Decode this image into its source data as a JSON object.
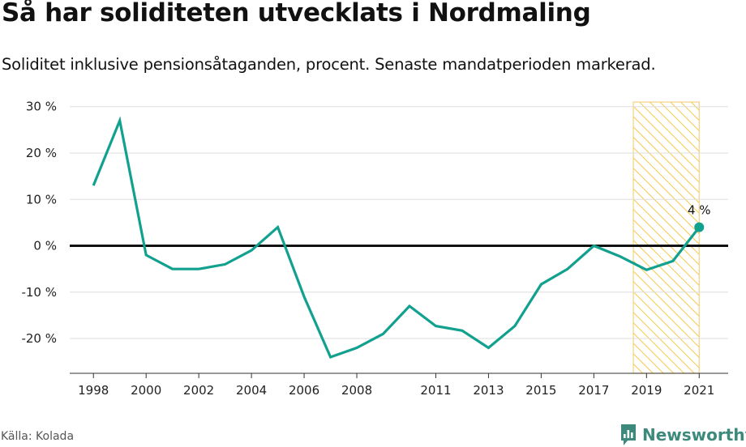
{
  "header": {
    "title": "Så har soliditeten utvecklats i Nordmaling",
    "subtitle": "Soliditet inklusive pensionsåtaganden, procent. Senaste mandatperioden markerad."
  },
  "footer": {
    "source": "Källa: Kolada",
    "brand": "Newsworthy",
    "brand_icon": "newsworthy-logo-icon"
  },
  "colors": {
    "line": "#12a08f",
    "highlight_fill": "#f5c84c",
    "highlight_stroke": "#f3d27f",
    "zero_line": "#111111",
    "grid": "#dddddd",
    "brand": "#3d8a7d"
  },
  "chart_data": {
    "type": "line",
    "title": "Så har soliditeten utvecklats i Nordmaling",
    "subtitle": "Soliditet inklusive pensionsåtaganden, procent. Senaste mandatperioden markerad.",
    "xlabel": "",
    "ylabel": "",
    "x": [
      1998,
      1999,
      2000,
      2001,
      2002,
      2003,
      2004,
      2005,
      2006,
      2007,
      2008,
      2009,
      2010,
      2011,
      2012,
      2013,
      2014,
      2015,
      2016,
      2017,
      2018,
      2019,
      2020,
      2021
    ],
    "values": [
      13,
      27,
      -2,
      -5,
      -5,
      -4,
      -1,
      4,
      -11,
      -24,
      -22,
      -19,
      -13,
      -17.3,
      -18.3,
      -22,
      -17.3,
      -8.3,
      -5,
      0,
      -2.3,
      -5.2,
      -3.3,
      4
    ],
    "xlim": [
      1997.1,
      2022.1
    ],
    "ylim": [
      -27.5,
      31
    ],
    "y_ticks": [
      30,
      20,
      10,
      0,
      -10,
      -20
    ],
    "y_tick_labels": [
      "30 %",
      "20 %",
      "10 %",
      "0 %",
      "-10 %",
      "-20 %"
    ],
    "x_ticks": [
      1998,
      2000,
      2002,
      2004,
      2006,
      2008,
      2011,
      2013,
      2015,
      2017,
      2019,
      2021
    ],
    "x_tick_labels": [
      "1998",
      "2000",
      "2002",
      "2004",
      "2006",
      "2008",
      "2011",
      "2013",
      "2015",
      "2017",
      "2019",
      "2021"
    ],
    "highlight_period": [
      2018.5,
      2021
    ],
    "last_point_label": "4 %",
    "grid": true
  }
}
